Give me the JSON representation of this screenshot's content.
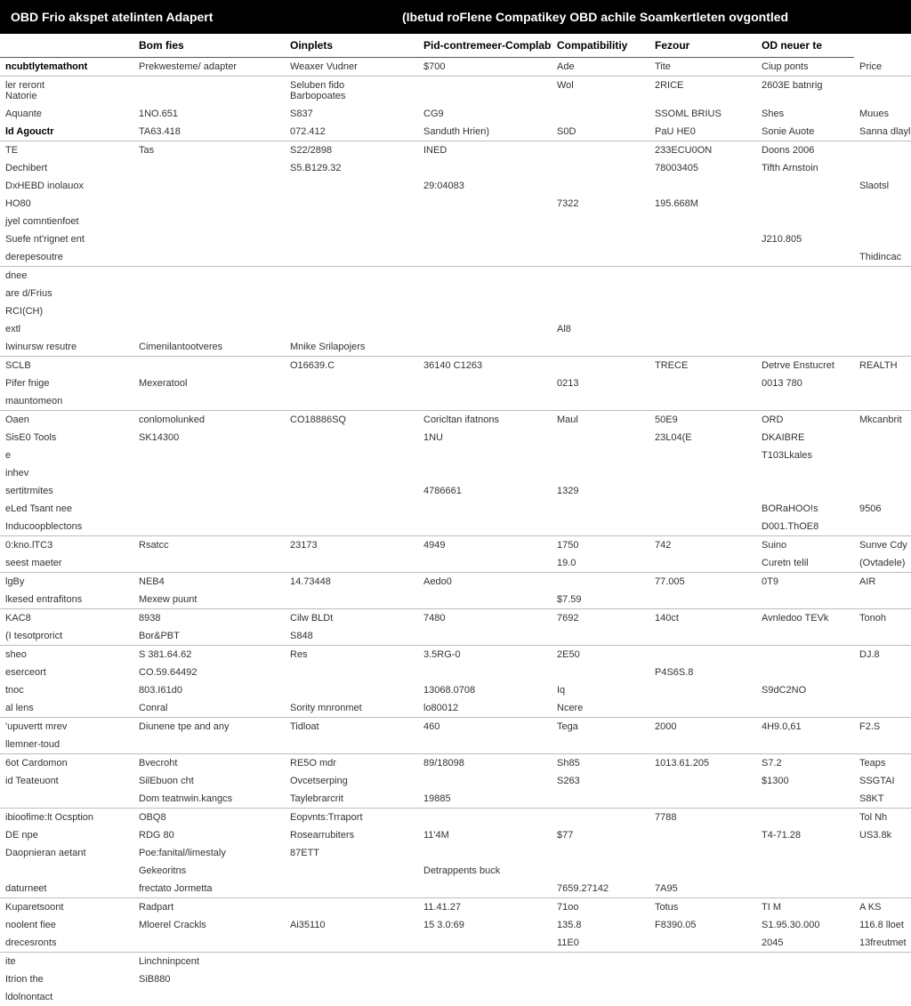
{
  "header": {
    "left": "OBD Frio akspet atelinten Adapert",
    "right": "(Ibetud roFlene Compatikey  OBD achile Soamkertleten ovgontled"
  },
  "columns": [
    "",
    "Bom fies",
    "Oinplets",
    "Pid-contremeer-Complabt)",
    "Compatibilitiy",
    "Fezour",
    "OD neuer te"
  ],
  "col0_label": "ncubtlytemathont",
  "rows": [
    {
      "b": true,
      "c": [
        "ncubtlytemathont",
        "Prekwesteme/ adapter",
        "Weaxer Vudner",
        "$700",
        "Ade",
        "Tite",
        "Ciup ponts",
        "Price"
      ]
    },
    {
      "b": false,
      "c": [
        "ler reront\nNatorie",
        "",
        "Seluben fido\nBarbopoates",
        "",
        "Wol",
        "2RICE",
        "2603E batnrig",
        ""
      ]
    },
    {
      "b": false,
      "c": [
        "Aquante",
        "1NO.651",
        "S837",
        "CG9",
        "",
        "SSOML BRIUS",
        "Shes",
        "Muues"
      ]
    },
    {
      "b": true,
      "c": [
        "ld Agouctr",
        "TA63.418",
        "072.412",
        "Sanduth Hrien)",
        "S0D",
        "PaU HE0",
        "Sonie Auote",
        "Sanna dlayle"
      ]
    },
    {
      "b": false,
      "c": [
        "TE",
        "Tas",
        "S22/2898",
        "INED",
        "",
        "233ECU0ON",
        "Doons 2006",
        ""
      ]
    },
    {
      "b": false,
      "c": [
        "Dechibert",
        "",
        "S5.B129.32",
        "",
        "",
        "78003405",
        "Tifth Arnstoin",
        ""
      ]
    },
    {
      "b": false,
      "c": [
        "DxHEBD inolauox",
        "",
        "",
        "29:04083",
        "",
        "",
        "",
        "Slaotsl"
      ]
    },
    {
      "b": false,
      "c": [
        "HO80",
        "",
        "",
        "",
        "7322",
        "195.668M",
        "",
        ""
      ]
    },
    {
      "b": false,
      "c": [
        "jyel comntienfoet",
        "",
        "",
        "",
        "",
        "",
        "",
        ""
      ]
    },
    {
      "b": false,
      "c": [
        "Suefe nt'rignet ent",
        "",
        "",
        "",
        "",
        "",
        "J210.805",
        ""
      ]
    },
    {
      "b": true,
      "c": [
        "derepesoutre",
        "",
        "",
        "",
        "",
        "",
        "",
        "Thidincac"
      ]
    },
    {
      "b": false,
      "c": [
        "dnee",
        "",
        "",
        "",
        "",
        "",
        "",
        ""
      ]
    },
    {
      "b": false,
      "c": [
        "are d/Frius",
        "",
        "",
        "",
        "",
        "",
        "",
        ""
      ]
    },
    {
      "b": false,
      "c": [
        "RCI(CH)",
        "",
        "",
        "",
        "",
        "",
        "",
        ""
      ]
    },
    {
      "b": false,
      "c": [
        "extl",
        "",
        "",
        "",
        "Al8",
        "",
        "",
        ""
      ]
    },
    {
      "b": true,
      "c": [
        "Iwinursw resutre",
        "Cimenilantootveres",
        "Mnike Srilapojers",
        "",
        "",
        "",
        "",
        ""
      ]
    },
    {
      "b": false,
      "c": [
        "SCLB",
        "",
        "O16639.C",
        "36140 C1263",
        "",
        "TRECE",
        "Detrve Enstucret",
        "REALTH"
      ]
    },
    {
      "b": false,
      "c": [
        "Pifer fnige",
        "Mexeratool",
        "",
        "",
        "0213",
        "",
        "0013 780",
        ""
      ]
    },
    {
      "b": true,
      "c": [
        "mauntomeon",
        "",
        "",
        "",
        "",
        "",
        "",
        ""
      ]
    },
    {
      "b": false,
      "c": [
        "Oaen",
        "conlomolunked",
        "CO18886SQ",
        "Coricltan ifatnons",
        "Maul",
        "50E9",
        "ORD",
        "Mkcanbrit"
      ]
    },
    {
      "b": false,
      "c": [
        "SisE0 Tools",
        "SK14300",
        "",
        "1NU",
        "",
        "23L04(E",
        "DKAIBRE",
        ""
      ]
    },
    {
      "b": false,
      "c": [
        "e",
        "",
        "",
        "",
        "",
        "",
        "T103Lkales",
        ""
      ]
    },
    {
      "b": false,
      "c": [
        "inhev",
        "",
        "",
        "",
        "",
        "",
        "",
        ""
      ]
    },
    {
      "b": false,
      "c": [
        "sertitrmites",
        "",
        "",
        "4786661",
        "1329",
        "",
        "",
        ""
      ]
    },
    {
      "b": false,
      "c": [
        "eLed Tsant nee",
        "",
        "",
        "",
        "",
        "",
        "BORaHOO!s",
        "9506"
      ]
    },
    {
      "b": true,
      "c": [
        "Inducoopblectons",
        "",
        "",
        "",
        "",
        "",
        "D001.ThOE8",
        ""
      ]
    },
    {
      "b": false,
      "c": [
        "0:kno.lTC3",
        "Rsatcc",
        "23173",
        "4949",
        "1750",
        "742",
        "Suino",
        "Sunve Cdy"
      ]
    },
    {
      "b": true,
      "c": [
        "seest maeter",
        "",
        "",
        "",
        "19.0",
        "",
        "Curetn telil",
        "(Ovtadele)"
      ]
    },
    {
      "b": false,
      "c": [
        "lgBy",
        "NEB4",
        "14.73448",
        "Aedo0",
        "",
        "77.005",
        "0T9",
        "AIR"
      ]
    },
    {
      "b": true,
      "c": [
        "lkesed entrafitons",
        "Mexew puunt",
        "",
        "",
        "$7.59",
        "",
        "",
        ""
      ]
    },
    {
      "b": false,
      "c": [
        "KAC8",
        "8938",
        "Cilw BLDt",
        "7480",
        "7692",
        "140ct",
        "Avnledoo TEVk",
        "Tonoh"
      ]
    },
    {
      "b": true,
      "c": [
        "(I tesotprorict",
        "Bor&PBT",
        "S848",
        "",
        "",
        "",
        "",
        ""
      ]
    },
    {
      "b": false,
      "c": [
        "sheo",
        "S 381.64.62",
        "Res",
        "3.5RG-0",
        "2E50",
        "",
        "",
        "DJ.8"
      ]
    },
    {
      "b": false,
      "c": [
        "eserceort",
        "CO.59.64492",
        "",
        "",
        "",
        "P4S6S.8",
        "",
        ""
      ]
    },
    {
      "b": false,
      "c": [
        "tnoc",
        "803.I61d0",
        "",
        "13068.0708",
        "Iq",
        "",
        "S9dC2NO",
        ""
      ]
    },
    {
      "b": true,
      "c": [
        "al lens",
        "Conral",
        "Sority mnronmet",
        "lo80012",
        "Ncere",
        "",
        "",
        ""
      ]
    },
    {
      "b": false,
      "c": [
        "'upuvertt mrev",
        "Diunene tpe and any",
        "Tidloat",
        "460",
        "Tega",
        "2000",
        "4H9.0,61",
        "F2.S"
      ]
    },
    {
      "b": true,
      "c": [
        "llemner-toud",
        "",
        "",
        "",
        "",
        "",
        "",
        ""
      ]
    },
    {
      "b": false,
      "c": [
        "6ot Cardomon",
        "Bvecroht",
        "RE5O mdr",
        "89/18098",
        "Sh85",
        "1013.61.205",
        "S7.2",
        "Teaps"
      ]
    },
    {
      "b": false,
      "c": [
        "id Teateuont",
        "SilEbuon cht",
        "Ovcetserping",
        "",
        "S263",
        "",
        "$1300",
        "SSGTAI"
      ]
    },
    {
      "b": true,
      "c": [
        "",
        "Dom teatnwin.kangcs",
        "Taylebrarcrit",
        "19885",
        "",
        "",
        "",
        "S8KT"
      ]
    },
    {
      "b": false,
      "c": [
        "ibioofime:lt Ocsption",
        "OBQ8",
        "Eopvnts:Trraport",
        "",
        "",
        "7788",
        "",
        "Tol Nh"
      ]
    },
    {
      "b": false,
      "c": [
        "DE npe",
        "RDG 80",
        "Rosearrubiters",
        "11'4M",
        "$77",
        "",
        "T4-71.28",
        "US3.8k"
      ]
    },
    {
      "b": false,
      "c": [
        "Daopnieran aetant",
        "Poe:fanital/limestaly",
        "87ETT",
        "",
        "",
        "",
        "",
        ""
      ]
    },
    {
      "b": false,
      "c": [
        "",
        "Gekeoritns",
        "",
        "Detrappents buck",
        "",
        "",
        "",
        ""
      ]
    },
    {
      "b": true,
      "c": [
        "daturneet",
        "frectato Jormetta",
        "",
        "",
        "7659.27142",
        "7A95",
        "",
        ""
      ]
    },
    {
      "b": false,
      "c": [
        "Kuparetsoont",
        "Radpart",
        "",
        "11.41.27",
        "71oo",
        "Totus",
        "TI M",
        "A KS"
      ]
    },
    {
      "b": false,
      "c": [
        "noolent fiee",
        "Mloerel Crackls",
        "Ai35110",
        "15 3.0:69",
        "135.8",
        "F8390.05",
        "S1.95.30.000",
        "116.8 lloet"
      ]
    },
    {
      "b": true,
      "c": [
        "drecesronts",
        "",
        "",
        "",
        "11E0",
        "",
        "2045",
        "13freutmet"
      ]
    },
    {
      "b": false,
      "c": [
        "ite",
        "Linchninpcent",
        "",
        "",
        "",
        "",
        "",
        ""
      ]
    },
    {
      "b": false,
      "c": [
        "Itrion the",
        "SiB880",
        "",
        "",
        "",
        "",
        "",
        ""
      ]
    },
    {
      "b": false,
      "c": [
        "ldolnontact",
        "",
        "",
        "",
        "",
        "",
        "",
        ""
      ]
    }
  ]
}
